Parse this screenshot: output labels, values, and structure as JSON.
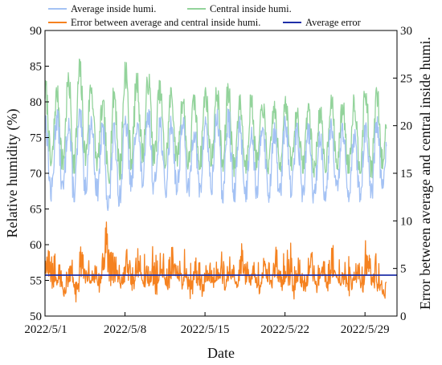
{
  "chart_data": {
    "type": "line",
    "xlabel": "Date",
    "ylabel_left": "Relative humidity (%)",
    "ylabel_right": "Error between average and central inside humi.",
    "x_axis": {
      "start": "2022/5/1",
      "end": "2022/5/31",
      "ticks": [
        "2022/5/1",
        "2022/5/8",
        "2022/5/15",
        "2022/5/22",
        "2022/5/29"
      ]
    },
    "y_left": {
      "min": 50,
      "max": 90,
      "ticks": [
        50,
        55,
        60,
        65,
        70,
        75,
        80,
        85,
        90
      ]
    },
    "y_right": {
      "min": 0,
      "max": 30,
      "ticks": [
        0,
        5,
        10,
        15,
        20,
        25,
        30
      ]
    },
    "legend_position": "top, two rows inside plot",
    "grid": false,
    "average_error": 4.3,
    "series": [
      {
        "name": "Average inside humi.",
        "axis": "left",
        "color": "#a4c2f4",
        "sampling": "daily approximate (estimated)",
        "x": [
          "2022/5/1",
          "2022/5/2",
          "2022/5/3",
          "2022/5/4",
          "2022/5/5",
          "2022/5/6",
          "2022/5/7",
          "2022/5/8",
          "2022/5/9",
          "2022/5/10",
          "2022/5/11",
          "2022/5/12",
          "2022/5/13",
          "2022/5/14",
          "2022/5/15",
          "2022/5/16",
          "2022/5/17",
          "2022/5/18",
          "2022/5/19",
          "2022/5/20",
          "2022/5/21",
          "2022/5/22",
          "2022/5/23",
          "2022/5/24",
          "2022/5/25",
          "2022/5/26",
          "2022/5/27",
          "2022/5/28",
          "2022/5/29",
          "2022/5/30",
          "2022/5/31"
        ],
        "min": [
          65,
          67,
          66,
          66,
          68,
          65,
          64,
          67,
          68,
          68,
          66,
          67,
          67,
          66,
          67,
          67,
          65,
          66,
          66,
          67,
          65,
          67,
          66,
          66,
          65,
          67,
          66,
          66,
          66,
          65,
          68
        ],
        "max": [
          78,
          79,
          78,
          79,
          78,
          77,
          77,
          78,
          78,
          79,
          78,
          78,
          78,
          77,
          78,
          79,
          79,
          78,
          77,
          78,
          77,
          78,
          77,
          77,
          76,
          78,
          77,
          76,
          77,
          78,
          77
        ]
      },
      {
        "name": "Central inside humi.",
        "axis": "left",
        "color": "#93d39b",
        "sampling": "daily approximate (estimated)",
        "x": [
          "2022/5/1",
          "2022/5/2",
          "2022/5/3",
          "2022/5/4",
          "2022/5/5",
          "2022/5/6",
          "2022/5/7",
          "2022/5/8",
          "2022/5/9",
          "2022/5/10",
          "2022/5/11",
          "2022/5/12",
          "2022/5/13",
          "2022/5/14",
          "2022/5/15",
          "2022/5/16",
          "2022/5/17",
          "2022/5/18",
          "2022/5/19",
          "2022/5/20",
          "2022/5/21",
          "2022/5/22",
          "2022/5/23",
          "2022/5/24",
          "2022/5/25",
          "2022/5/26",
          "2022/5/27",
          "2022/5/28",
          "2022/5/29",
          "2022/5/30",
          "2022/5/31"
        ],
        "min": [
          69,
          71,
          70,
          70,
          72,
          69,
          68,
          70,
          71,
          72,
          70,
          71,
          71,
          70,
          71,
          71,
          69,
          70,
          70,
          71,
          69,
          71,
          70,
          70,
          69,
          71,
          70,
          70,
          70,
          69,
          72
        ],
        "max": [
          83,
          82,
          84,
          86,
          83,
          80,
          82,
          86,
          84,
          84,
          83,
          82,
          81,
          81,
          82,
          82,
          83,
          81,
          81,
          80,
          80,
          81,
          79,
          80,
          79,
          81,
          80,
          81,
          82,
          82,
          80
        ]
      },
      {
        "name": "Error between average and central inside humi.",
        "axis": "right",
        "color": "#f58220",
        "sampling": "daily approximate (estimated)",
        "x": [
          "2022/5/1",
          "2022/5/2",
          "2022/5/3",
          "2022/5/4",
          "2022/5/5",
          "2022/5/6",
          "2022/5/7",
          "2022/5/8",
          "2022/5/9",
          "2022/5/10",
          "2022/5/11",
          "2022/5/12",
          "2022/5/13",
          "2022/5/14",
          "2022/5/15",
          "2022/5/16",
          "2022/5/17",
          "2022/5/18",
          "2022/5/19",
          "2022/5/20",
          "2022/5/21",
          "2022/5/22",
          "2022/5/23",
          "2022/5/24",
          "2022/5/25",
          "2022/5/26",
          "2022/5/27",
          "2022/5/28",
          "2022/5/29",
          "2022/5/30",
          "2022/5/31"
        ],
        "min": [
          1.5,
          1.0,
          0.8,
          1.2,
          1.6,
          1.2,
          2.0,
          1.4,
          1.2,
          0.6,
          1.0,
          1.5,
          0.5,
          1.2,
          1.6,
          1.7,
          2.0,
          1.0,
          1.5,
          1.3,
          0.9,
          0.4,
          1.2,
          1.6,
          1.5,
          1.8,
          0.3,
          1.6,
          1.4,
          0.6,
          1.4
        ],
        "max": [
          7.5,
          6.0,
          6.6,
          8.1,
          6.5,
          10.2,
          6.2,
          7.2,
          8.3,
          7.3,
          8.0,
          7.5,
          7.0,
          6.8,
          6.8,
          7.1,
          6.3,
          7.6,
          6.4,
          7.6,
          7.7,
          8.1,
          6.2,
          7.0,
          7.0,
          7.5,
          7.3,
          6.2,
          8.1,
          5.5,
          7.9
        ]
      },
      {
        "name": "Average error",
        "axis": "right",
        "color": "#1f2fa8",
        "constant": 4.3
      }
    ]
  }
}
